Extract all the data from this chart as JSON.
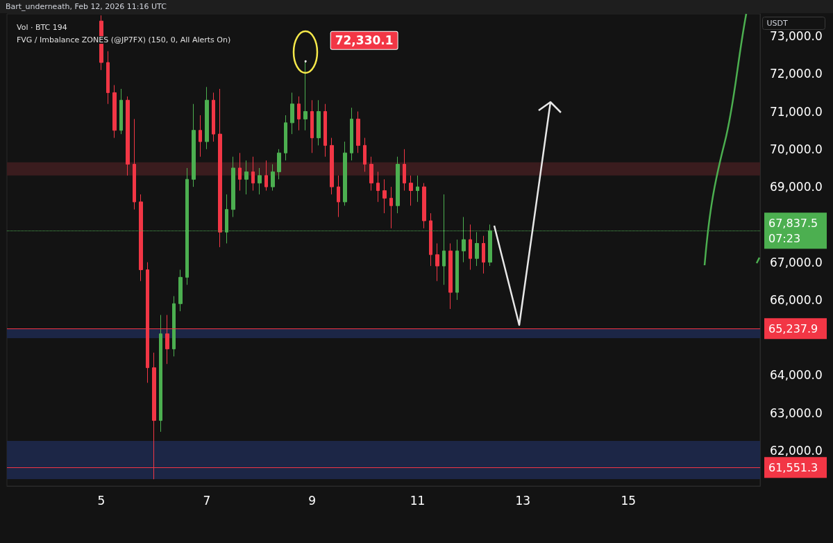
{
  "chart_data": {
    "type": "candlestick",
    "ylabel": "USDT",
    "annotations": [
      "Bart_underneath, Feb 12, 2026 11:16 UTC",
      "Vol · BTC 194",
      "FVG / Imbalance ZONES (@JP7FX) (150, 0, All Alerts On)",
      {
        "text": "72,330.1",
        "x": "2026-02-08T21:00",
        "y": 72330.1
      }
    ],
    "x": [
      "2026-02-05T00:00",
      "2026-02-05T03:00",
      "2026-02-05T06:00",
      "2026-02-05T09:00",
      "2026-02-05T12:00",
      "2026-02-05T15:00",
      "2026-02-05T18:00",
      "2026-02-05T21:00",
      "2026-02-06T00:00",
      "2026-02-06T03:00",
      "2026-02-06T06:00",
      "2026-02-06T09:00",
      "2026-02-06T12:00",
      "2026-02-06T15:00",
      "2026-02-06T18:00",
      "2026-02-06T21:00",
      "2026-02-07T00:00",
      "2026-02-07T03:00",
      "2026-02-07T06:00",
      "2026-02-07T09:00",
      "2026-02-07T12:00",
      "2026-02-07T15:00",
      "2026-02-07T18:00",
      "2026-02-07T21:00",
      "2026-02-08T00:00",
      "2026-02-08T03:00",
      "2026-02-08T06:00",
      "2026-02-08T09:00",
      "2026-02-08T12:00",
      "2026-02-08T15:00",
      "2026-02-08T18:00",
      "2026-02-08T21:00",
      "2026-02-09T00:00",
      "2026-02-09T03:00",
      "2026-02-09T06:00",
      "2026-02-09T09:00",
      "2026-02-09T12:00",
      "2026-02-09T15:00",
      "2026-02-09T18:00",
      "2026-02-09T21:00",
      "2026-02-10T00:00",
      "2026-02-10T03:00",
      "2026-02-10T06:00",
      "2026-02-10T09:00",
      "2026-02-10T12:00",
      "2026-02-10T15:00",
      "2026-02-10T18:00",
      "2026-02-10T21:00",
      "2026-02-11T00:00",
      "2026-02-11T03:00",
      "2026-02-11T06:00",
      "2026-02-11T09:00",
      "2026-02-11T12:00",
      "2026-02-11T15:00",
      "2026-02-11T18:00",
      "2026-02-11T21:00",
      "2026-02-12T00:00",
      "2026-02-12T03:00",
      "2026-02-12T06:00",
      "2026-02-12T09:00"
    ],
    "ohlc": [
      [
        73400,
        73550,
        72100,
        72300
      ],
      [
        72300,
        72600,
        71200,
        71500
      ],
      [
        71500,
        71700,
        70300,
        70500
      ],
      [
        70500,
        71600,
        70400,
        71300
      ],
      [
        71300,
        71400,
        69300,
        69600
      ],
      [
        69600,
        70800,
        68400,
        68600
      ],
      [
        68600,
        68800,
        66500,
        66800
      ],
      [
        66800,
        67000,
        63800,
        64200
      ],
      [
        64200,
        64600,
        61240,
        62800
      ],
      [
        62800,
        65600,
        62500,
        65100
      ],
      [
        65100,
        65600,
        64300,
        64700
      ],
      [
        64700,
        66100,
        64500,
        65900
      ],
      [
        65900,
        66800,
        65700,
        66600
      ],
      [
        66600,
        69500,
        66400,
        69200
      ],
      [
        69200,
        71200,
        69000,
        70500
      ],
      [
        70500,
        70900,
        69800,
        70200
      ],
      [
        70200,
        71650,
        70000,
        71300
      ],
      [
        71300,
        71500,
        70200,
        70400
      ],
      [
        70400,
        71600,
        67400,
        67800
      ],
      [
        67800,
        68800,
        67500,
        68400
      ],
      [
        68400,
        69800,
        68200,
        69500
      ],
      [
        69500,
        69900,
        68900,
        69200
      ],
      [
        69200,
        69700,
        68800,
        69400
      ],
      [
        69400,
        69800,
        68900,
        69100
      ],
      [
        69100,
        69500,
        68800,
        69300
      ],
      [
        69300,
        69700,
        68900,
        69000
      ],
      [
        69000,
        69600,
        68900,
        69400
      ],
      [
        69400,
        70000,
        69200,
        69900
      ],
      [
        69900,
        70900,
        69700,
        70700
      ],
      [
        70700,
        71500,
        70400,
        71200
      ],
      [
        71200,
        71400,
        70500,
        70800
      ],
      [
        70800,
        72330.1,
        70500,
        71000
      ],
      [
        71000,
        71300,
        69900,
        70300
      ],
      [
        70300,
        71300,
        70100,
        71000
      ],
      [
        71000,
        71200,
        69800,
        70100
      ],
      [
        70100,
        70300,
        68800,
        69000
      ],
      [
        69000,
        69300,
        68200,
        68600
      ],
      [
        68600,
        70200,
        68500,
        69900
      ],
      [
        69900,
        71100,
        69700,
        70800
      ],
      [
        70800,
        71000,
        69900,
        70100
      ],
      [
        70100,
        70300,
        69400,
        69600
      ],
      [
        69600,
        69800,
        68900,
        69100
      ],
      [
        69100,
        69400,
        68600,
        68900
      ],
      [
        68900,
        69200,
        68300,
        68700
      ],
      [
        68700,
        69000,
        67900,
        68500
      ],
      [
        68500,
        69800,
        68300,
        69600
      ],
      [
        69600,
        70000,
        68900,
        69100
      ],
      [
        69100,
        69300,
        68500,
        68900
      ],
      [
        68900,
        69300,
        68600,
        69000
      ],
      [
        69000,
        69100,
        67900,
        68100
      ],
      [
        68100,
        68300,
        66900,
        67200
      ],
      [
        67200,
        67500,
        66500,
        66900
      ],
      [
        66900,
        68800,
        66400,
        67300
      ],
      [
        67300,
        67500,
        65760,
        66200
      ],
      [
        66200,
        67600,
        66000,
        67300
      ],
      [
        67300,
        68200,
        67000,
        67600
      ],
      [
        67600,
        68000,
        66800,
        67100
      ],
      [
        67100,
        67800,
        66900,
        67500
      ],
      [
        67500,
        67700,
        66700,
        67000
      ],
      [
        67000,
        68000,
        66900,
        67837.5
      ]
    ],
    "colors": [
      "#f23645",
      "#f23645",
      "#f23645",
      "#4caf50",
      "#f23645",
      "#f23645",
      "#f23645",
      "#f23645",
      "#f23645",
      "#4caf50",
      "#f23645",
      "#4caf50",
      "#4caf50",
      "#4caf50",
      "#4caf50",
      "#f23645",
      "#4caf50",
      "#f23645",
      "#f23645",
      "#4caf50",
      "#4caf50",
      "#f23645",
      "#4caf50",
      "#f23645",
      "#4caf50",
      "#f23645",
      "#4caf50",
      "#4caf50",
      "#4caf50",
      "#4caf50",
      "#f23645",
      "#4caf50",
      "#f23645",
      "#4caf50",
      "#f23645",
      "#f23645",
      "#f23645",
      "#4caf50",
      "#4caf50",
      "#f23645",
      "#f23645",
      "#f23645",
      "#f23645",
      "#f23645",
      "#f23645",
      "#4caf50",
      "#f23645",
      "#f23645",
      "#4caf50",
      "#f23645",
      "#f23645",
      "#f23645",
      "#4caf50",
      "#f23645",
      "#4caf50",
      "#4caf50",
      "#f23645",
      "#4caf50",
      "#f23645",
      "#4caf50"
    ],
    "xlim": [
      "2026-02-03T05:00",
      "2026-02-17T12:00"
    ],
    "xticks": [
      {
        "value": "2026-02-05T00:00",
        "label": "5"
      },
      {
        "value": "2026-02-07T00:00",
        "label": "7"
      },
      {
        "value": "2026-02-09T00:00",
        "label": "9"
      },
      {
        "value": "2026-02-11T00:00",
        "label": "11"
      },
      {
        "value": "2026-02-13T00:00",
        "label": "13"
      },
      {
        "value": "2026-02-15T00:00",
        "label": "15"
      }
    ],
    "ylim": [
      61060,
      73590
    ],
    "yticks": [
      {
        "value": 62000,
        "label": "62,000.0"
      },
      {
        "value": 63000,
        "label": "63,000.0"
      },
      {
        "value": 64000,
        "label": "64,000.0"
      },
      {
        "value": 66000,
        "label": "66,000.0"
      },
      {
        "value": 67000,
        "label": "67,000.0"
      },
      {
        "value": 69000,
        "label": "69,000.0"
      },
      {
        "value": 70000,
        "label": "70,000.0"
      },
      {
        "value": 71000,
        "label": "71,000.0"
      },
      {
        "value": 72000,
        "label": "72,000.0"
      },
      {
        "value": 73000,
        "label": "73,000.0"
      }
    ],
    "ref_lines": [
      {
        "axis": "y",
        "value": 67837.5,
        "label": "67,837.5\n07:23",
        "color": "#4caf50",
        "line_style": "dotted"
      },
      {
        "axis": "y",
        "value": 65237.9,
        "label": "65,237.9",
        "color": "#f23645",
        "line_style": "solid"
      },
      {
        "axis": "y",
        "value": 61551.3,
        "label": "61,551.3",
        "color": "#f23645",
        "line_style": "solid"
      }
    ],
    "bands": [
      {
        "axis": "y",
        "from": 64985,
        "to": 65243,
        "color": "#1c2646"
      },
      {
        "axis": "y",
        "from": 61244,
        "to": 62258,
        "color": "#1c2646"
      },
      {
        "axis": "y",
        "from": 69300,
        "to": 69650,
        "color": "#3a1c1e"
      }
    ]
  }
}
